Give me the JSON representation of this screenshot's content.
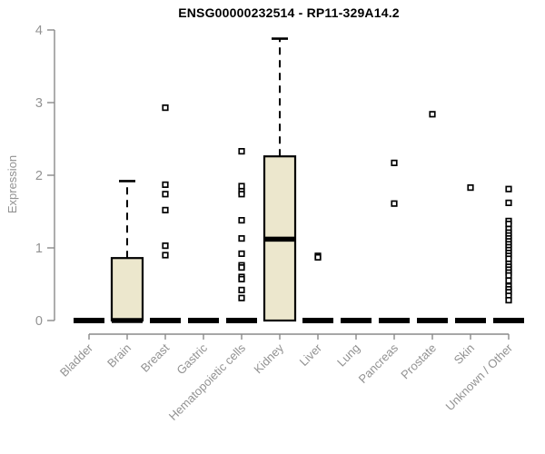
{
  "page": {
    "background": "#ffffff"
  },
  "chart_data": {
    "type": "boxplot",
    "title": "ENSG00000232514 - RP11-329A14.2",
    "ylabel": "Expression",
    "xlabel": "",
    "ylim": [
      0,
      4
    ],
    "yticks": [
      0,
      1,
      2,
      3,
      4
    ],
    "grid": "off",
    "legend": "none",
    "x_tick_label_rotation_deg": 45,
    "categories": [
      "Bladder",
      "Brain",
      "Breast",
      "Gastric",
      "Hematopoietic cells",
      "Kidney",
      "Liver",
      "Lung",
      "Pancreas",
      "Prostate",
      "Skin",
      "Unknown / Other"
    ],
    "boxes": [
      {
        "category": "Bladder",
        "q1": 0,
        "median": 0,
        "q3": 0,
        "whisker_low": 0,
        "whisker_high": 0,
        "outliers": []
      },
      {
        "category": "Brain",
        "q1": 0,
        "median": 0,
        "q3": 0.86,
        "whisker_low": 0,
        "whisker_high": 1.92,
        "outliers": []
      },
      {
        "category": "Breast",
        "q1": 0,
        "median": 0,
        "q3": 0,
        "whisker_low": 0,
        "whisker_high": 0,
        "outliers": [
          2.93,
          1.87,
          1.74,
          1.52,
          1.03,
          0.9
        ]
      },
      {
        "category": "Gastric",
        "q1": 0,
        "median": 0,
        "q3": 0,
        "whisker_low": 0,
        "whisker_high": 0,
        "outliers": []
      },
      {
        "category": "Hematopoietic cells",
        "q1": 0,
        "median": 0,
        "q3": 0,
        "whisker_low": 0,
        "whisker_high": 0,
        "outliers": [
          2.33,
          1.85,
          1.78,
          1.74,
          1.38,
          1.13,
          0.92,
          0.76,
          0.73,
          0.6,
          0.57,
          0.42,
          0.31
        ]
      },
      {
        "category": "Kidney",
        "q1": 0,
        "median": 1.12,
        "q3": 2.26,
        "whisker_low": 0,
        "whisker_high": 3.88,
        "outliers": []
      },
      {
        "category": "Liver",
        "q1": 0,
        "median": 0,
        "q3": 0,
        "whisker_low": 0,
        "whisker_high": 0,
        "outliers": [
          0.89,
          0.87
        ]
      },
      {
        "category": "Lung",
        "q1": 0,
        "median": 0,
        "q3": 0,
        "whisker_low": 0,
        "whisker_high": 0,
        "outliers": []
      },
      {
        "category": "Pancreas",
        "q1": 0,
        "median": 0,
        "q3": 0,
        "whisker_low": 0,
        "whisker_high": 0,
        "outliers": [
          2.17,
          1.61
        ]
      },
      {
        "category": "Prostate",
        "q1": 0,
        "median": 0,
        "q3": 0,
        "whisker_low": 0,
        "whisker_high": 0,
        "outliers": [
          2.84
        ]
      },
      {
        "category": "Skin",
        "q1": 0,
        "median": 0,
        "q3": 0,
        "whisker_low": 0,
        "whisker_high": 0,
        "outliers": [
          1.83
        ]
      },
      {
        "category": "Unknown / Other",
        "q1": 0,
        "median": 0,
        "q3": 0,
        "whisker_low": 0,
        "whisker_high": 0,
        "outliers": [
          1.81,
          1.62,
          1.37,
          1.33,
          1.26,
          1.21,
          1.17,
          1.13,
          1.09,
          1.05,
          1.01,
          0.97,
          0.93,
          0.89,
          0.85,
          0.78,
          0.74,
          0.7,
          0.66,
          0.62,
          0.55,
          0.47,
          0.43,
          0.39,
          0.34,
          0.28
        ]
      }
    ],
    "colors": {
      "box_fill": "#ece7cd",
      "box_stroke": "#000000",
      "axis": "#8a8a8a",
      "tick_label": "#929292",
      "title": "#000000"
    }
  }
}
